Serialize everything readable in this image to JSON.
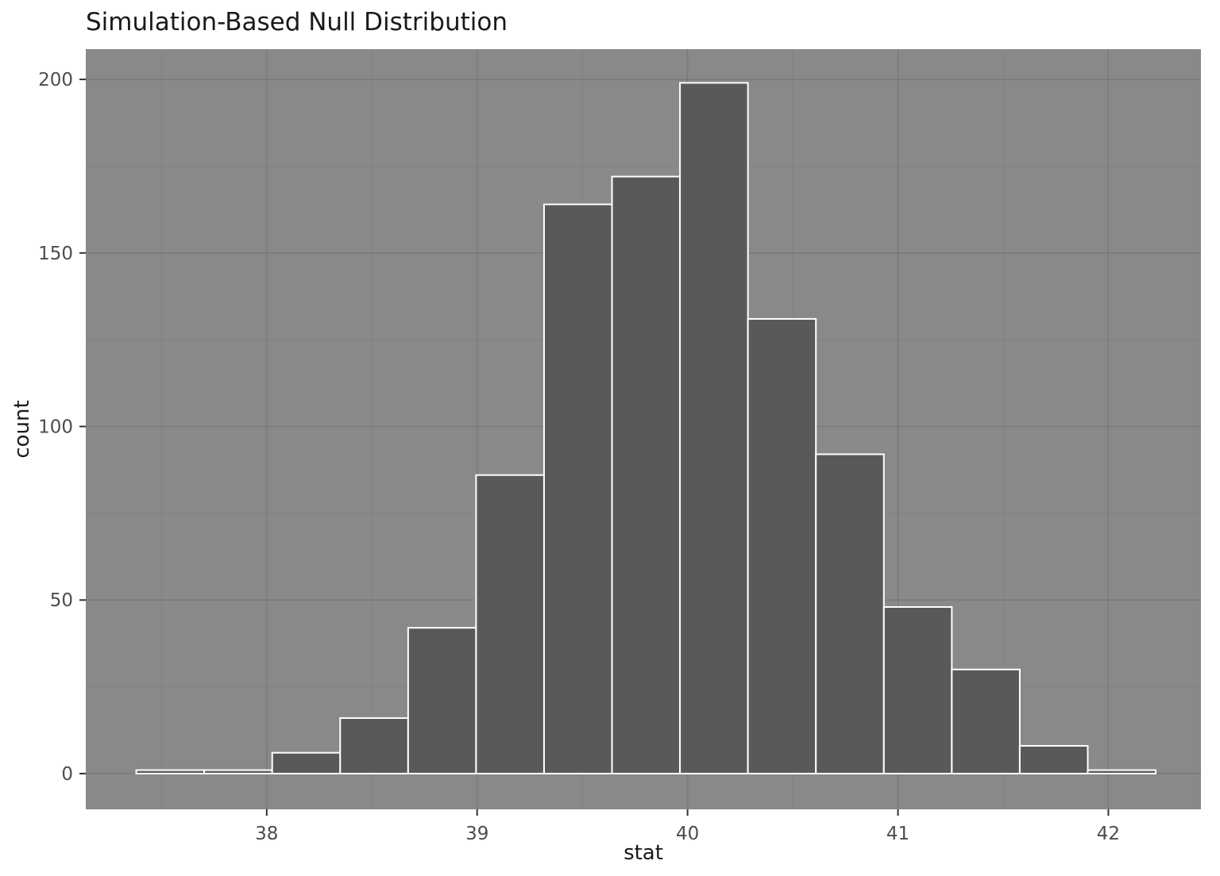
{
  "chart_data": {
    "type": "bar",
    "subtype": "histogram",
    "title": "Simulation-Based Null Distribution",
    "xlabel": "stat",
    "ylabel": "count",
    "bin_start": 37.38,
    "bin_width": 0.323,
    "counts": [
      1,
      1,
      6,
      16,
      42,
      86,
      164,
      172,
      199,
      131,
      92,
      48,
      30,
      8,
      1
    ],
    "xlim": [
      37.14,
      42.44
    ],
    "ylim": [
      -10.3,
      208.7
    ],
    "x_ticks": [
      38,
      39,
      40,
      41,
      42
    ],
    "y_ticks": [
      0,
      50,
      100,
      150,
      200
    ],
    "x_minor_ticks": [
      37.5,
      38.5,
      39.5,
      40.5,
      41.5
    ],
    "y_minor_ticks": [
      25,
      75,
      125,
      175
    ],
    "grid": true,
    "legend": "none",
    "colors": {
      "page_bg": "#FFFFFF",
      "panel_bg": "#898989",
      "grid_major": "rgba(0,0,0,0.10)",
      "grid_minor": "rgba(0,0,0,0.05)",
      "bar_fill": "#595959",
      "bar_stroke": "#FFFFFF",
      "tick_mark": "#333333",
      "axis_text": "#4D4D4D",
      "title_text": "#1A1A1A"
    }
  }
}
